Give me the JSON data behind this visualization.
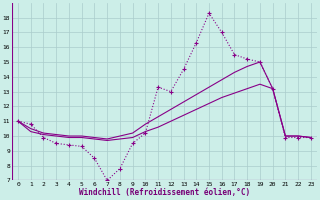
{
  "xlabel": "Windchill (Refroidissement éolien,°C)",
  "background_color": "#cceee8",
  "grid_color": "#aacccc",
  "line_color": "#880088",
  "x_hours": [
    0,
    1,
    2,
    3,
    4,
    5,
    6,
    7,
    8,
    9,
    10,
    11,
    12,
    13,
    14,
    15,
    16,
    17,
    18,
    19,
    20,
    21,
    22,
    23
  ],
  "ylim": [
    7,
    19
  ],
  "yticks": [
    7,
    8,
    9,
    10,
    11,
    12,
    13,
    14,
    15,
    16,
    17,
    18
  ],
  "xlim": [
    -0.5,
    23.5
  ],
  "series1": [
    11.0,
    10.8,
    9.9,
    9.5,
    9.4,
    9.3,
    8.5,
    7.0,
    7.8,
    9.5,
    10.2,
    13.3,
    13.0,
    14.5,
    16.3,
    18.3,
    17.0,
    15.5,
    15.2,
    15.0,
    13.2,
    9.9,
    9.9,
    9.9
  ],
  "series2": [
    11.0,
    10.5,
    10.2,
    10.1,
    10.0,
    10.0,
    9.9,
    9.8,
    10.0,
    10.2,
    10.8,
    11.3,
    11.8,
    12.3,
    12.8,
    13.3,
    13.8,
    14.3,
    14.7,
    15.0,
    13.2,
    10.0,
    10.0,
    9.9
  ],
  "series3": [
    11.0,
    10.3,
    10.1,
    10.0,
    9.9,
    9.9,
    9.8,
    9.7,
    9.8,
    9.9,
    10.3,
    10.6,
    11.0,
    11.4,
    11.8,
    12.2,
    12.6,
    12.9,
    13.2,
    13.5,
    13.2,
    10.0,
    10.0,
    9.9
  ]
}
